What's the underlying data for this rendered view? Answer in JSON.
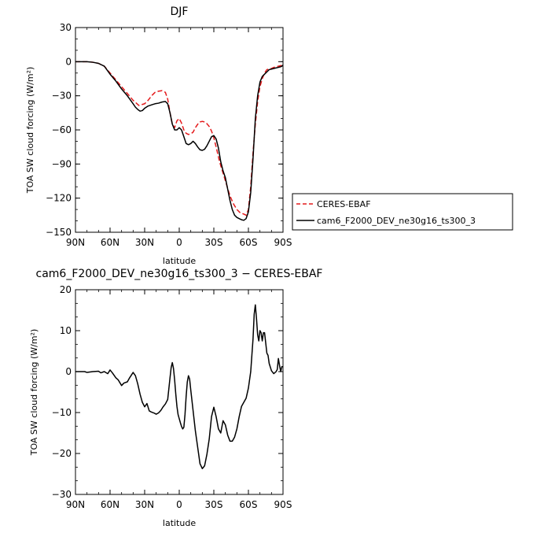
{
  "chart_data": [
    {
      "type": "line",
      "title": "DJF",
      "xlabel": "latitude",
      "ylabel": "TOA SW cloud forcing (W/m²)",
      "xlim": [
        90,
        -90
      ],
      "ylim": [
        -150,
        30
      ],
      "xticks": [
        90,
        60,
        30,
        0,
        -30,
        -60,
        -90
      ],
      "xtick_labels": [
        "90N",
        "60N",
        "30N",
        "0",
        "30S",
        "60S",
        "90S"
      ],
      "yticks": [
        30,
        0,
        -30,
        -60,
        -90,
        -120,
        -150
      ],
      "ytick_labels": [
        "30",
        "0",
        "−30",
        "−60",
        "−90",
        "−120",
        "−150"
      ],
      "legend_placement": "right",
      "series": [
        {
          "name": "CERES-EBAF",
          "color": "#e41a1c",
          "dash": "dashed",
          "x": [
            90,
            85,
            80,
            75,
            70,
            65,
            60,
            55,
            50,
            45,
            40,
            35,
            30,
            27,
            24,
            21,
            18,
            15,
            12,
            10,
            8,
            6,
            4,
            2,
            0,
            -2,
            -4,
            -6,
            -8,
            -10,
            -12,
            -14,
            -16,
            -18,
            -20,
            -22,
            -24,
            -26,
            -28,
            -30,
            -32,
            -35,
            -38,
            -41,
            -44,
            -47,
            -50,
            -53,
            -56,
            -58,
            -60,
            -62,
            -64,
            -66,
            -68,
            -70,
            -72,
            -74,
            -76,
            -78,
            -80,
            -82,
            -84,
            -86,
            -88,
            -90
          ],
          "y": [
            0,
            0,
            0,
            -0.5,
            -1.5,
            -4,
            -10,
            -16,
            -22,
            -28,
            -34,
            -38.5,
            -37,
            -34,
            -30,
            -27,
            -26,
            -25.5,
            -27,
            -33,
            -45,
            -55,
            -58,
            -52,
            -50,
            -54,
            -60,
            -63,
            -64,
            -63.5,
            -62,
            -58,
            -55,
            -53,
            -52.5,
            -53,
            -54.5,
            -57,
            -61,
            -67,
            -75,
            -88,
            -98,
            -108,
            -118,
            -125,
            -130,
            -133,
            -134,
            -135,
            -130,
            -110,
            -80,
            -55,
            -35,
            -22,
            -15,
            -10,
            -7,
            -6.5,
            -6,
            -5,
            -4.5,
            -4,
            -3.5,
            -3
          ]
        },
        {
          "name": "cam6_F2000_DEV_ne30g16_ts300_3",
          "color": "#000000",
          "dash": "solid",
          "x": [
            90,
            85,
            80,
            75,
            70,
            65,
            60,
            55,
            50,
            45,
            40,
            38,
            36,
            34,
            32,
            30,
            27,
            24,
            21,
            18,
            15,
            12,
            10,
            8,
            6,
            4,
            2,
            0,
            -2,
            -4,
            -6,
            -8,
            -10,
            -12,
            -14,
            -16,
            -18,
            -20,
            -22,
            -24,
            -26,
            -28,
            -30,
            -32,
            -34,
            -36,
            -38,
            -40,
            -42,
            -44,
            -46,
            -48,
            -50,
            -52,
            -54,
            -56,
            -58,
            -60,
            -62,
            -64,
            -66,
            -68,
            -70,
            -72,
            -74,
            -76,
            -78,
            -80,
            -82,
            -84,
            -86,
            -88,
            -89,
            -90
          ],
          "y": [
            0,
            0,
            0,
            -0.5,
            -1.5,
            -4,
            -11,
            -17,
            -24,
            -30,
            -37,
            -40,
            -42,
            -43.5,
            -43,
            -41,
            -39,
            -38,
            -37,
            -36.5,
            -35.5,
            -35,
            -37,
            -45,
            -55,
            -60,
            -60,
            -58,
            -60,
            -66,
            -72,
            -73,
            -72,
            -70,
            -72,
            -75,
            -77.5,
            -78,
            -77,
            -74,
            -70,
            -66,
            -65,
            -68,
            -76,
            -88,
            -96,
            -102,
            -112,
            -122,
            -130,
            -135,
            -137,
            -138,
            -139,
            -139.5,
            -138,
            -132,
            -115,
            -85,
            -50,
            -30,
            -18,
            -13,
            -11,
            -9,
            -7,
            -6.5,
            -6,
            -5.5,
            -5,
            -4.5,
            -4,
            -3
          ]
        }
      ]
    },
    {
      "type": "line",
      "title": "cam6_F2000_DEV_ne30g16_ts300_3 − CERES-EBAF",
      "xlabel": "latitude",
      "ylabel": "TOA SW cloud forcing (W/m²)",
      "xlim": [
        90,
        -90
      ],
      "ylim": [
        -30,
        20
      ],
      "xticks": [
        90,
        60,
        30,
        0,
        -30,
        -60,
        -90
      ],
      "xtick_labels": [
        "90N",
        "60N",
        "30N",
        "0",
        "30S",
        "60S",
        "90S"
      ],
      "yticks": [
        20,
        10,
        0,
        -10,
        -20,
        -30
      ],
      "ytick_labels": [
        "20",
        "10",
        "0",
        "−10",
        "−20",
        "−30"
      ],
      "series": [
        {
          "name": "",
          "color": "#000000",
          "dash": "solid",
          "x": [
            90,
            85,
            82,
            80,
            75,
            70,
            68,
            65,
            62,
            60,
            58,
            55,
            53,
            50,
            48,
            45,
            43,
            40,
            38,
            36,
            34,
            32,
            30,
            28,
            26,
            24,
            22,
            20,
            18,
            16,
            14,
            12,
            10,
            8,
            7,
            6,
            5,
            4,
            3,
            2,
            1,
            0,
            -1,
            -2,
            -3,
            -4,
            -5,
            -6,
            -7,
            -8,
            -9,
            -10,
            -12,
            -14,
            -16,
            -18,
            -20,
            -22,
            -24,
            -26,
            -28,
            -30,
            -32,
            -34,
            -36,
            -38,
            -40,
            -42,
            -44,
            -46,
            -48,
            -50,
            -52,
            -54,
            -56,
            -58,
            -60,
            -62,
            -63,
            -64,
            -65,
            -66,
            -67,
            -68,
            -69,
            -70,
            -71,
            -72,
            -73,
            -74,
            -75,
            -76,
            -77,
            -78,
            -80,
            -82,
            -84,
            -85,
            -86,
            -87,
            -88,
            -89,
            -90
          ],
          "y": [
            0,
            0,
            0,
            -0.2,
            0,
            0.1,
            -0.3,
            0,
            -0.5,
            0.4,
            -0.3,
            -1.5,
            -2,
            -3.4,
            -2.8,
            -2.5,
            -1.5,
            -0.2,
            -1,
            -3,
            -5.5,
            -7.5,
            -8.6,
            -7.8,
            -9.6,
            -9.9,
            -10.1,
            -10.4,
            -10.1,
            -9.5,
            -8.6,
            -7.9,
            -6.8,
            -1.5,
            1,
            2.2,
            0.8,
            -2,
            -5.5,
            -8.5,
            -10.5,
            -11.5,
            -12.5,
            -13.4,
            -14,
            -13.6,
            -10.5,
            -6,
            -2.5,
            -1,
            -1.8,
            -4.5,
            -9.5,
            -14.5,
            -18.5,
            -22.5,
            -23.7,
            -23,
            -20.2,
            -16.5,
            -11,
            -8.7,
            -11,
            -14,
            -15,
            -12,
            -13,
            -15.5,
            -17,
            -17,
            -16,
            -14,
            -11,
            -8.5,
            -7.5,
            -6.5,
            -4,
            0,
            4,
            8,
            14,
            16.3,
            13,
            9,
            7.5,
            10,
            9.5,
            7.5,
            9.5,
            9.5,
            7,
            4.5,
            4,
            2,
            0.2,
            -0.5,
            0,
            0.5,
            3.2,
            1.5,
            0,
            1.2,
            1.2
          ]
        }
      ]
    }
  ]
}
